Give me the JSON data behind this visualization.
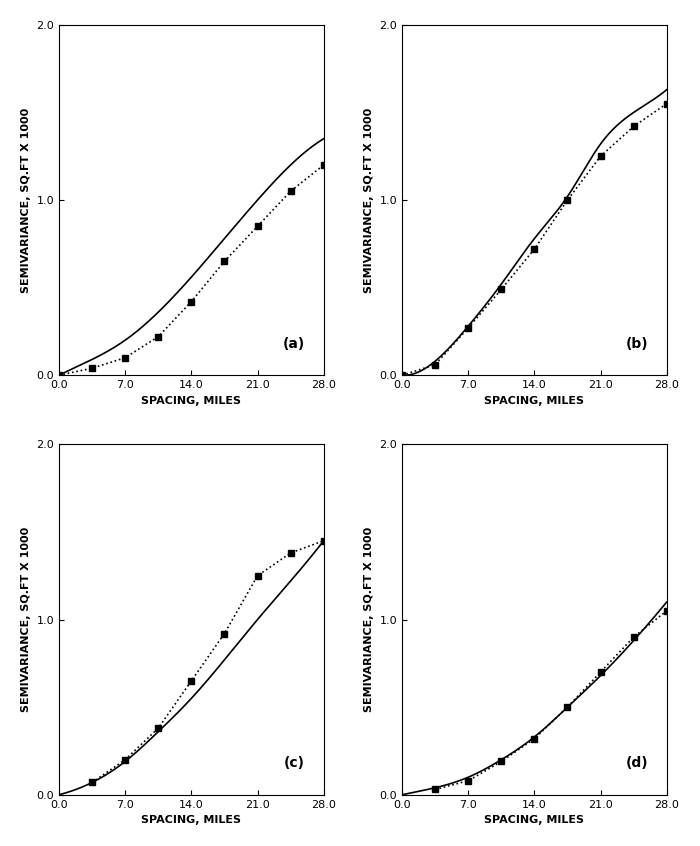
{
  "xlabel": "SPACING, MILES",
  "ylabel": "SEMIVARIANCE, SQ.FT X 1000",
  "xlim": [
    0,
    28
  ],
  "ylim": [
    0,
    2.0
  ],
  "xticks": [
    0.0,
    7.0,
    14.0,
    21.0,
    28.0
  ],
  "yticks": [
    0.0,
    1.0,
    2.0
  ],
  "panels": [
    "(a)",
    "(b)",
    "(c)",
    "(d)"
  ],
  "panel_a": {
    "solid_x": [
      0,
      3.5,
      7,
      10.5,
      14,
      17.5,
      21,
      24.5,
      28
    ],
    "solid_y": [
      0,
      0.09,
      0.2,
      0.36,
      0.56,
      0.78,
      1.0,
      1.2,
      1.35
    ],
    "dot_x": [
      0,
      3.5,
      7,
      10.5,
      14,
      17.5,
      21,
      24.5,
      28
    ],
    "dot_y": [
      0,
      0.04,
      0.1,
      0.22,
      0.42,
      0.65,
      0.85,
      1.05,
      1.2
    ]
  },
  "panel_b": {
    "solid_x": [
      0,
      3.5,
      7,
      10.5,
      14,
      17.5,
      21,
      24.5,
      28
    ],
    "solid_y": [
      0,
      0.08,
      0.28,
      0.52,
      0.78,
      1.02,
      1.32,
      1.5,
      1.63
    ],
    "dot_x": [
      0,
      3.5,
      7,
      10.5,
      14,
      17.5,
      21,
      24.5,
      28
    ],
    "dot_y": [
      0,
      0.06,
      0.27,
      0.49,
      0.72,
      1.0,
      1.25,
      1.42,
      1.55
    ]
  },
  "panel_c": {
    "solid_x": [
      0,
      3.5,
      7,
      10.5,
      14,
      17.5,
      21,
      24.5,
      28
    ],
    "solid_y": [
      0,
      0.07,
      0.19,
      0.36,
      0.55,
      0.77,
      1.0,
      1.22,
      1.45
    ],
    "dot_x": [
      3.5,
      7,
      10.5,
      14,
      17.5,
      21,
      24.5,
      28
    ],
    "dot_y": [
      0.07,
      0.2,
      0.38,
      0.65,
      0.92,
      1.25,
      1.38,
      1.45
    ]
  },
  "panel_d": {
    "solid_x": [
      0,
      3.5,
      7,
      10.5,
      14,
      17.5,
      21,
      24.5,
      28
    ],
    "solid_y": [
      0,
      0.04,
      0.1,
      0.2,
      0.33,
      0.5,
      0.68,
      0.88,
      1.1
    ],
    "dot_x": [
      3.5,
      7,
      10.5,
      14,
      17.5,
      21,
      24.5,
      28
    ],
    "dot_y": [
      0.03,
      0.08,
      0.19,
      0.32,
      0.5,
      0.7,
      0.9,
      1.05
    ]
  },
  "background_color": "#ffffff",
  "line_color": "#000000",
  "marker": "s",
  "marker_size": 5,
  "fontsize_label": 8,
  "fontsize_tick": 8,
  "fontsize_panel": 10
}
